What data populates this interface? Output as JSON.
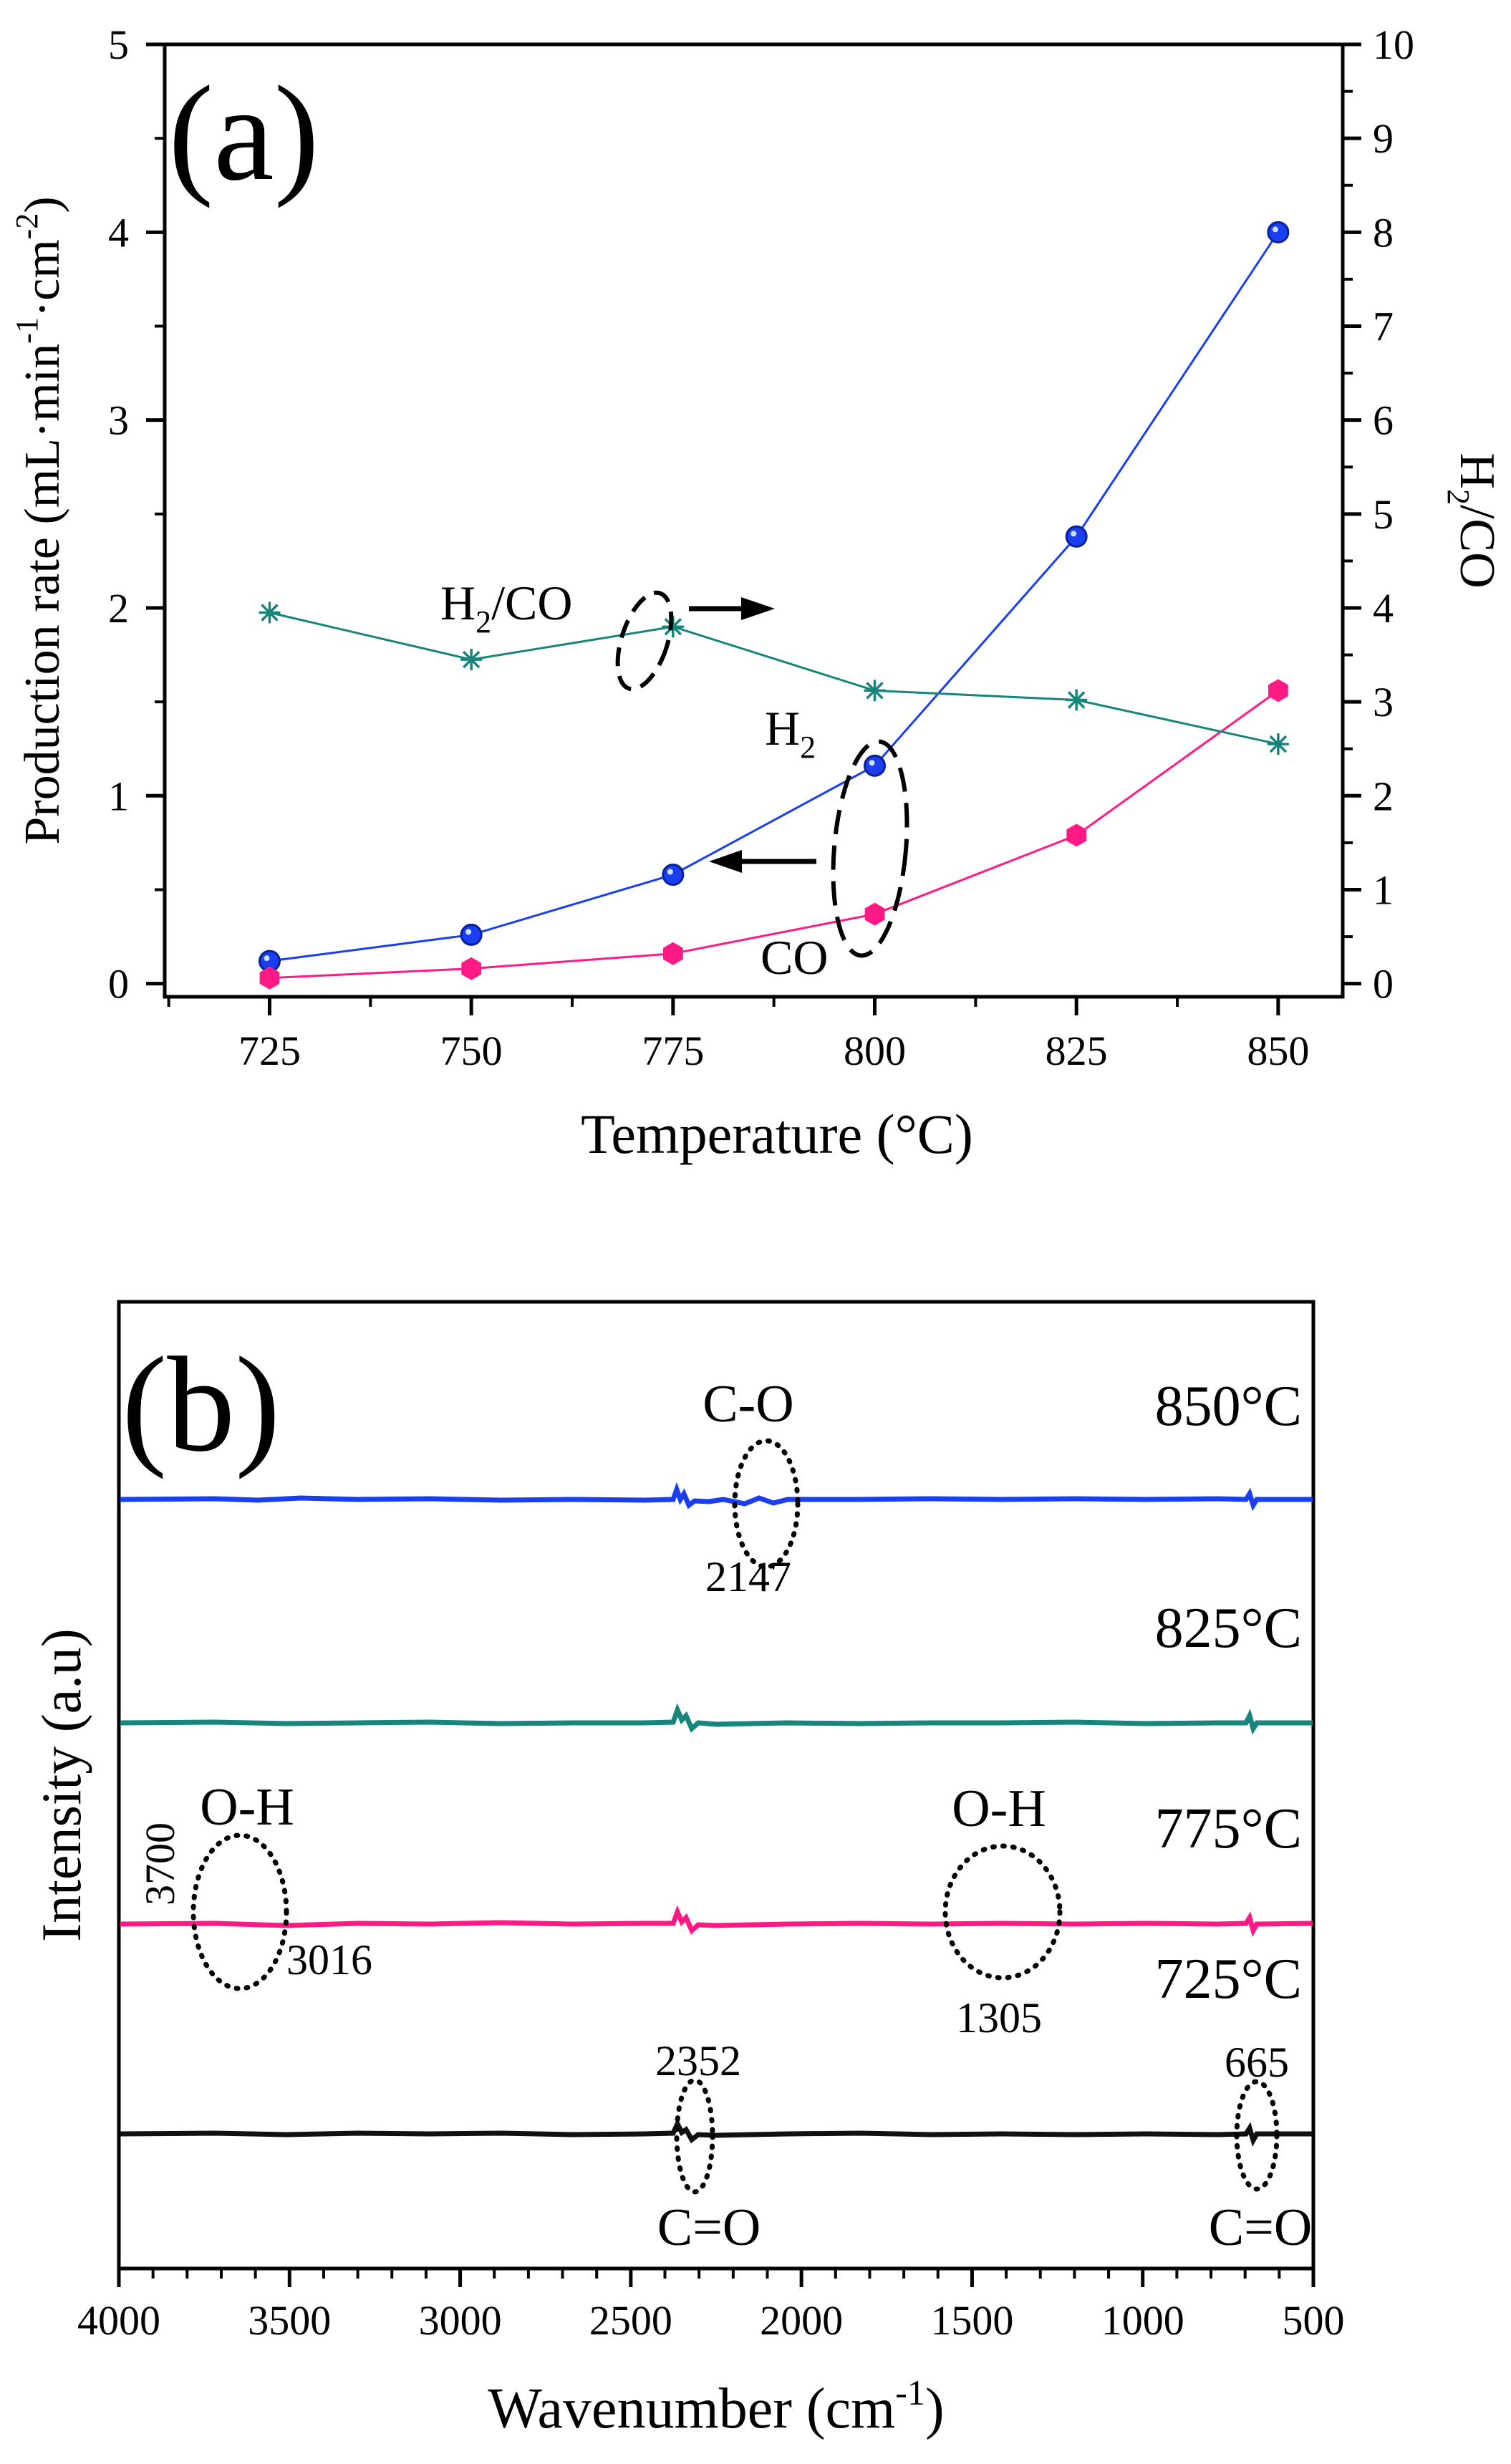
{
  "chart_data": [
    {
      "type": "line",
      "panel_label": "(a)",
      "x": [
        725,
        750,
        775,
        800,
        825,
        850
      ],
      "xlim": [
        712,
        858
      ],
      "xticks": [
        "725",
        "750",
        "775",
        "800",
        "825",
        "850"
      ],
      "xlabel": "Temperature (°C)",
      "ylabel": {
        "main": "Production rate (mL·min",
        "sup1": "-1",
        "mid": "·cm",
        "sup2": "-2",
        "end": ")"
      },
      "ylim": [
        -0.07,
        5
      ],
      "yticks": [
        "0",
        "1",
        "2",
        "3",
        "4",
        "5"
      ],
      "y2label": {
        "main": "H",
        "sub": "2",
        "end": "/CO"
      },
      "y2lim": [
        -0.14,
        10
      ],
      "y2ticks": [
        "0",
        "1",
        "2",
        "3",
        "4",
        "5",
        "6",
        "7",
        "8",
        "9",
        "10"
      ],
      "colors": {
        "h2": "#1a3ff0",
        "co": "#ff1a85",
        "ratio": "#17857c"
      },
      "series": [
        {
          "name": "H2",
          "axis": "left",
          "values": [
            0.12,
            0.26,
            0.58,
            1.16,
            2.38,
            4.0
          ]
        },
        {
          "name": "CO",
          "axis": "left",
          "values": [
            0.03,
            0.08,
            0.16,
            0.37,
            0.79,
            1.56
          ]
        },
        {
          "name": "H2/CO",
          "axis": "right",
          "values": [
            3.95,
            3.45,
            3.8,
            3.12,
            3.02,
            2.55
          ]
        }
      ],
      "annotations": {
        "ratio": {
          "main": "H",
          "sub": "2",
          "end": "/CO"
        },
        "h2": {
          "main": "H",
          "sub": "2"
        },
        "co": "CO"
      }
    },
    {
      "type": "line",
      "panel_label": "(b)",
      "xlim": [
        4000,
        500
      ],
      "xticks": [
        "4000",
        "3500",
        "3000",
        "2500",
        "2000",
        "1500",
        "1000",
        "500"
      ],
      "xlabel": {
        "main": "Wavenumber (cm",
        "sup": "-1",
        "end": ")"
      },
      "ylabel": "Intensity (a.u)",
      "colors": {
        "t850": "#1a3ff0",
        "t825": "#17857c",
        "t775": "#ff1a85",
        "t725": "#111111"
      },
      "series": [
        {
          "name": "850°C"
        },
        {
          "name": "825°C"
        },
        {
          "name": "775°C"
        },
        {
          "name": "725°C"
        }
      ],
      "annotations": {
        "co_stretch": "C-O",
        "co_stretch_wavenumber": "2147",
        "oh_high": "O-H",
        "oh_high_start": "3700",
        "oh_high_end": "3016",
        "oh_low": "O-H",
        "oh_low_wavenumber": "1305",
        "co2_a": "C=O",
        "co2_a_wavenumber": "2352",
        "co2_b": "C=O",
        "co2_b_wavenumber": "665"
      }
    }
  ]
}
